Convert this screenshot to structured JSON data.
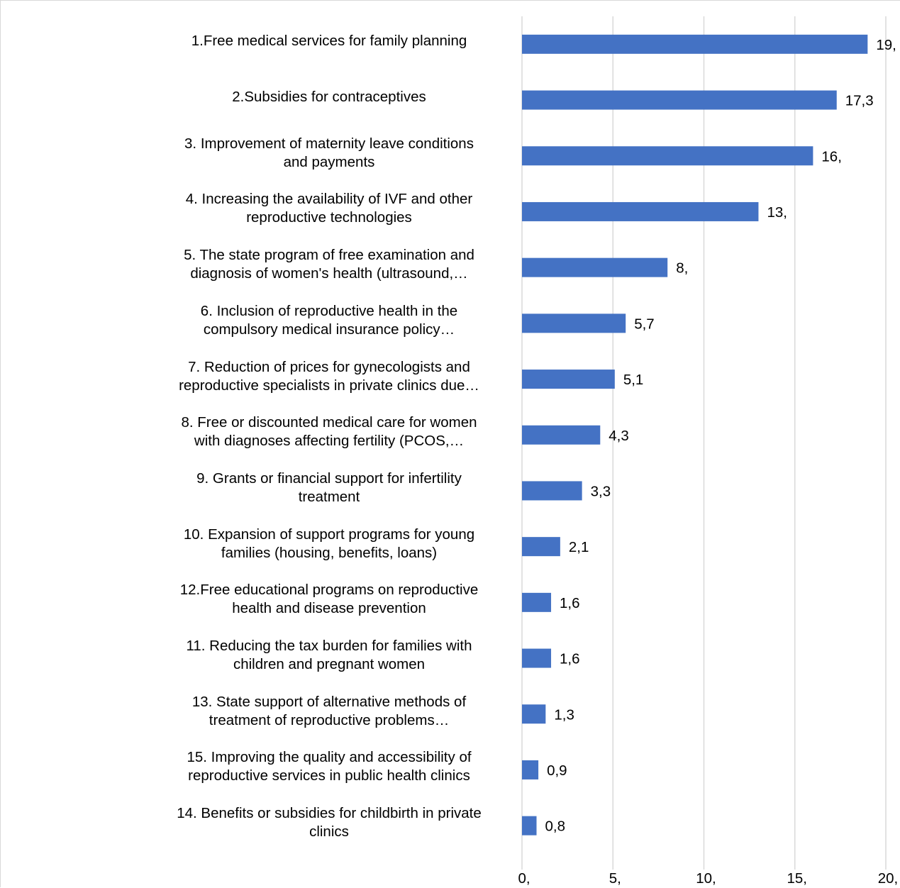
{
  "chart_data": {
    "type": "bar",
    "orientation": "horizontal",
    "categories": [
      [
        "1.Free medical services for family planning"
      ],
      [
        "2.Subsidies for contraceptives"
      ],
      [
        "3. Improvement of maternity leave conditions",
        "and payments"
      ],
      [
        "4. Increasing the availability of IVF and other",
        "reproductive technologies"
      ],
      [
        "5. The state program of free examination and",
        "diagnosis of women's health (ultrasound,…"
      ],
      [
        "6. Inclusion of reproductive health in the",
        "compulsory medical insurance policy…"
      ],
      [
        "7. Reduction of prices for gynecologists and",
        "reproductive specialists in private clinics due…"
      ],
      [
        "8. Free or discounted medical care for women",
        "with diagnoses affecting fertility (PCOS,…"
      ],
      [
        "9. Grants or financial support for infertility",
        "treatment"
      ],
      [
        "10. Expansion of support programs for young",
        "families (housing, benefits, loans)"
      ],
      [
        "12.Free educational programs on reproductive",
        "health and disease prevention"
      ],
      [
        "11. Reducing the tax burden for families with",
        "children and pregnant women"
      ],
      [
        "13. State support of alternative methods of",
        "treatment of reproductive problems…"
      ],
      [
        "15. Improving the quality and accessibility of",
        "reproductive services in public health clinics"
      ],
      [
        "14. Benefits or subsidies for childbirth in private",
        "clinics"
      ]
    ],
    "values": [
      19.0,
      17.3,
      16.0,
      13.0,
      8.0,
      5.7,
      5.1,
      4.3,
      3.3,
      2.1,
      1.6,
      1.6,
      1.3,
      0.9,
      0.8
    ],
    "data_labels": [
      "19,",
      "17,3",
      "16,",
      "13,",
      "8,",
      "5,7",
      "5,1",
      "4,3",
      "3,3",
      "2,1",
      "1,6",
      "1,6",
      "1,3",
      "0,9",
      "0,8"
    ],
    "x_ticks": [
      0,
      5,
      10,
      15,
      20
    ],
    "x_tick_labels": [
      "0,",
      "5,",
      "10,",
      "15,",
      "20,"
    ],
    "xlim": [
      0,
      20
    ],
    "grid": "vertical",
    "legend": "none",
    "bar_color": "#4472c4",
    "grid_color": "#d9d9d9"
  }
}
